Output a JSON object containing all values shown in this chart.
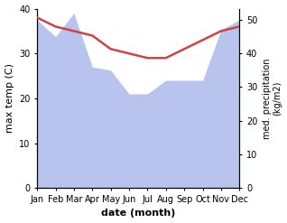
{
  "months": [
    "Jan",
    "Feb",
    "Mar",
    "Apr",
    "May",
    "Jun",
    "Jul",
    "Aug",
    "Sep",
    "Oct",
    "Nov",
    "Dec"
  ],
  "temperature": [
    38,
    36,
    35,
    34,
    31,
    30,
    29,
    29,
    31,
    33,
    35,
    36
  ],
  "precipitation": [
    50,
    45,
    52,
    36,
    35,
    28,
    28,
    32,
    32,
    32,
    47,
    50
  ],
  "temp_color": "#cc4444",
  "precip_color": "#b8c4ee",
  "ylabel_left": "max temp (C)",
  "ylabel_right": "med. precipitation\n(kg/m2)",
  "xlabel": "date (month)",
  "ylim_left": [
    0,
    40
  ],
  "ylim_right": [
    0,
    53.33
  ],
  "temp_linewidth": 1.8,
  "figsize": [
    3.18,
    2.47
  ],
  "dpi": 100
}
